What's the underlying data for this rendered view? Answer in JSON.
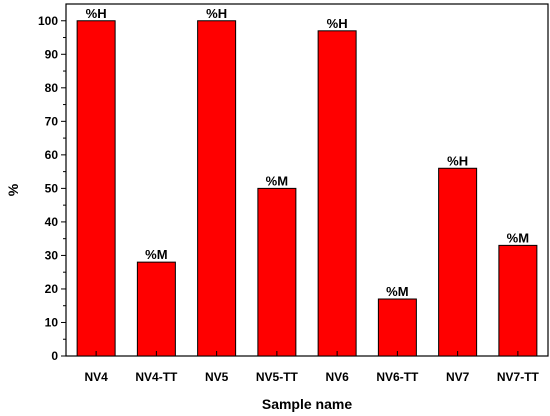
{
  "chart_data": {
    "type": "bar",
    "categories": [
      "NV4",
      "NV4-TT",
      "NV5",
      "NV5-TT",
      "NV6",
      "NV6-TT",
      "NV7",
      "NV7-TT"
    ],
    "values": [
      100,
      28,
      100,
      50,
      97,
      17,
      56,
      33
    ],
    "bar_labels": [
      "%H",
      "%M",
      "%H",
      "%M",
      "%H",
      "%M",
      "%H",
      "%M"
    ],
    "xlabel": "Sample name",
    "ylabel": "%",
    "ylim": [
      0,
      105
    ],
    "yticks": [
      0,
      10,
      20,
      30,
      40,
      50,
      60,
      70,
      80,
      90,
      100
    ],
    "grid": false,
    "bar_color": "#ff0000",
    "bar_edge_color": "#000000"
  }
}
